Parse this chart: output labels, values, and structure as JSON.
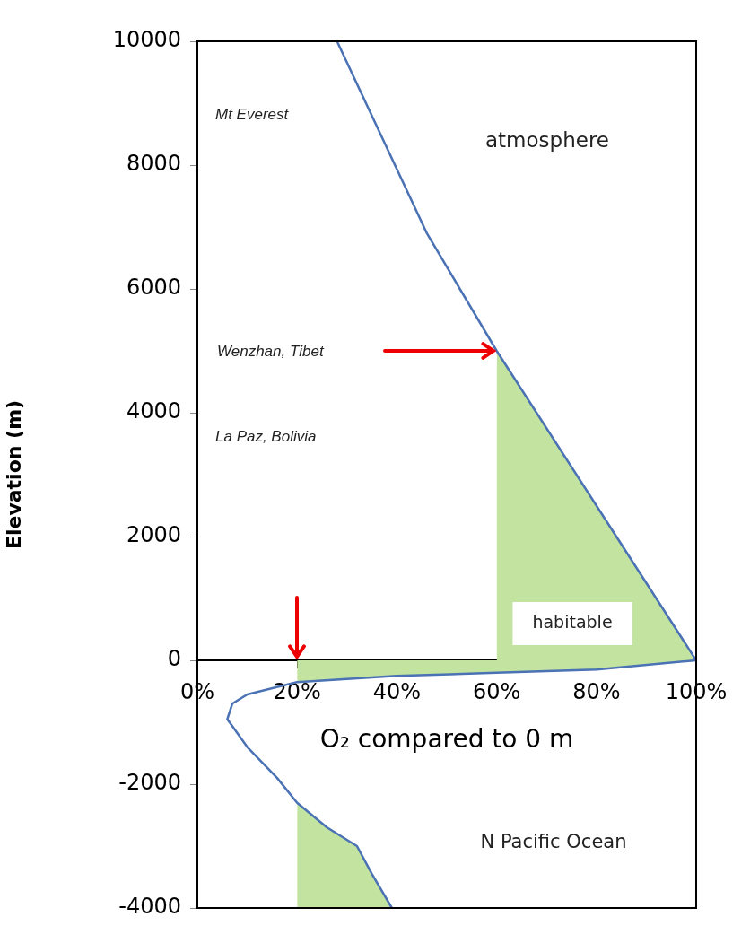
{
  "chart_data": {
    "type": "line",
    "xlabel": "O₂ compared to 0 m",
    "ylabel": "Elevation (m)",
    "xlim": [
      0,
      100
    ],
    "xticks": [
      {
        "value": 0,
        "label": "0%"
      },
      {
        "value": 20,
        "label": "20%"
      },
      {
        "value": 40,
        "label": "40%"
      },
      {
        "value": 60,
        "label": "60%"
      },
      {
        "value": 80,
        "label": "80%"
      },
      {
        "value": 100,
        "label": "100%"
      }
    ],
    "ylim": [
      -4000,
      10000
    ],
    "yticks": [
      -4000,
      -2000,
      0,
      2000,
      4000,
      6000,
      8000,
      10000
    ],
    "grid": false,
    "legend": false,
    "marker": "none",
    "line_style": "solid",
    "series": [
      {
        "type": "area",
        "color": "#c3e3a0",
        "x": [
          60,
          80,
          100
        ],
        "values": [
          5000,
          2500,
          0
        ]
      },
      {
        "type": "area",
        "color": "#c3e3a0",
        "x": [
          20,
          40,
          60,
          80,
          100
        ],
        "values": [
          -350,
          -250,
          -200,
          -150,
          0
        ]
      },
      {
        "type": "area",
        "color": "#c3e3a0",
        "x": [
          20,
          20,
          26,
          32,
          35,
          39
        ],
        "values": [
          -4000,
          -2300,
          -2700,
          -3000,
          -3450,
          -4000
        ]
      },
      {
        "color": "#4a72b4",
        "x": [
          28,
          46,
          60,
          80,
          100,
          80,
          60,
          40,
          20,
          10,
          7,
          6,
          10,
          16,
          20,
          26,
          32,
          35,
          39
        ],
        "values": [
          10000,
          6900,
          5000,
          2500,
          0,
          -150,
          -200,
          -250,
          -350,
          -550,
          -700,
          -950,
          -1400,
          -1900,
          -2300,
          -2700,
          -3000,
          -3450,
          -4000
        ]
      }
    ],
    "annotations": [
      "Mt Everest",
      "atmosphere",
      "Wenzhan, Tibet",
      "La Paz, Bolivia",
      "habitable",
      "N Pacific Ocean"
    ]
  }
}
